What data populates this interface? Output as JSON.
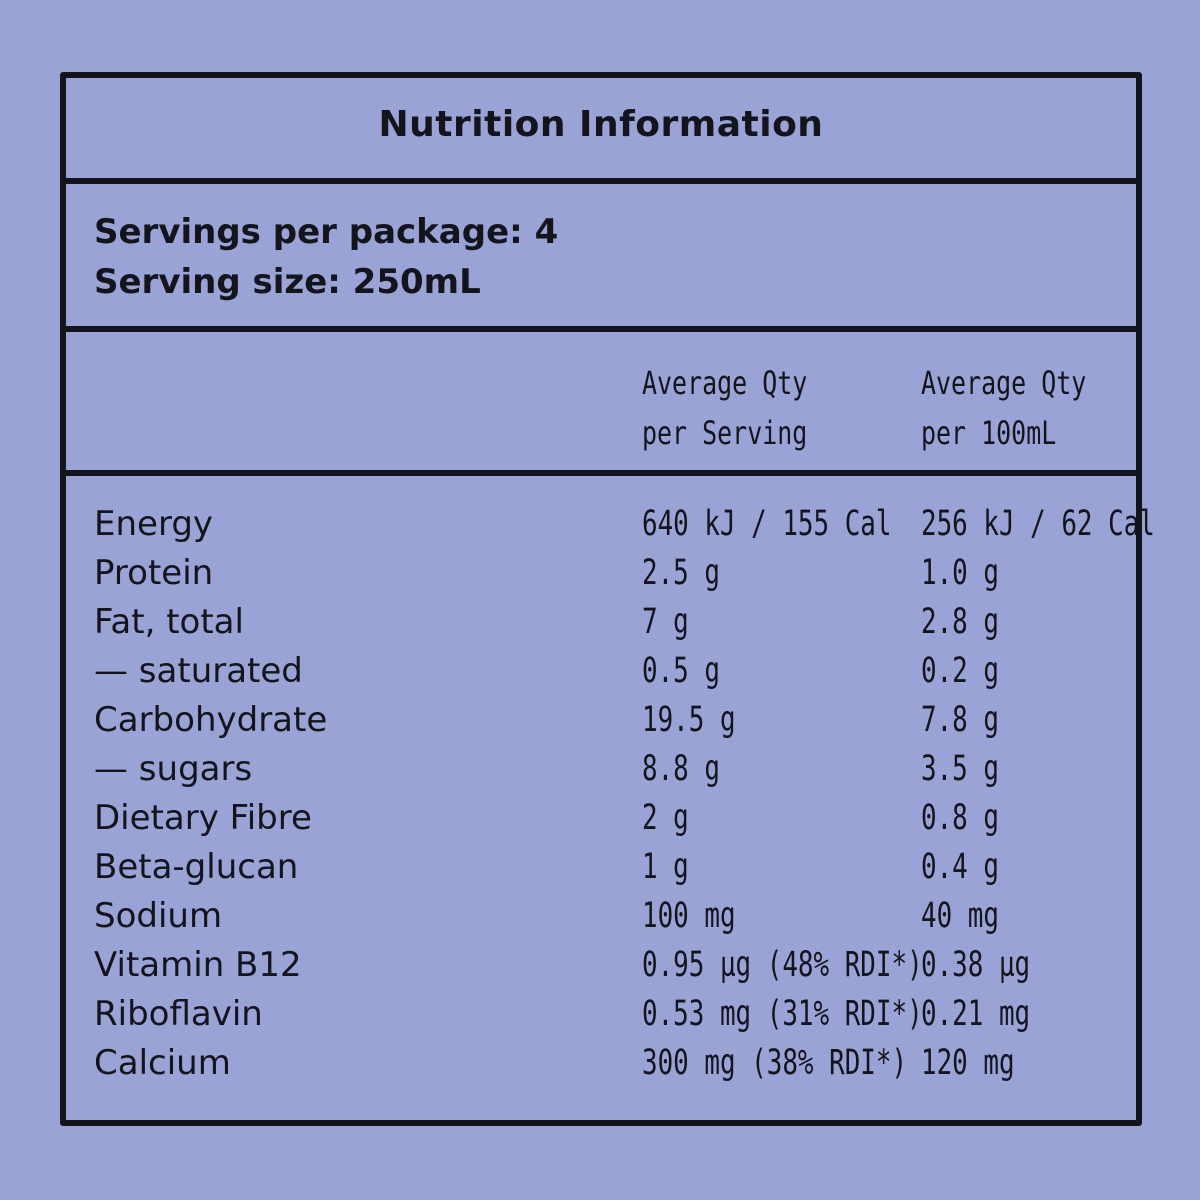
{
  "panel": {
    "title": "Nutrition Information"
  },
  "serving": {
    "servings_per_package": "Servings per package: 4",
    "serving_size": "Serving size: 250mL"
  },
  "columns": {
    "per_serving_line1": "Average Qty",
    "per_serving_line2": "per Serving",
    "per_100ml_line1": "Average Qty",
    "per_100ml_line2": "per 100mL"
  },
  "rows": [
    {
      "nutrient": "Energy",
      "per_serving": "640 kJ / 155 Cal",
      "per_100ml": "256 kJ / 62 Cal"
    },
    {
      "nutrient": "Protein",
      "per_serving": "2.5 g",
      "per_100ml": "1.0 g"
    },
    {
      "nutrient": "Fat, total",
      "per_serving": "7 g",
      "per_100ml": "2.8 g"
    },
    {
      "nutrient": "— saturated",
      "per_serving": "0.5 g",
      "per_100ml": "0.2 g"
    },
    {
      "nutrient": "Carbohydrate",
      "per_serving": "19.5 g",
      "per_100ml": "7.8 g"
    },
    {
      "nutrient": "— sugars",
      "per_serving": "8.8 g",
      "per_100ml": "3.5 g"
    },
    {
      "nutrient": "Dietary Fibre",
      "per_serving": "2 g",
      "per_100ml": "0.8 g"
    },
    {
      "nutrient": "Beta-glucan",
      "per_serving": "1 g",
      "per_100ml": "0.4 g"
    },
    {
      "nutrient": "Sodium",
      "per_serving": "100 mg",
      "per_100ml": "40 mg"
    },
    {
      "nutrient": "Vitamin B12",
      "per_serving": "0.95 µg  (48% RDI*)",
      "per_100ml": "0.38 µg"
    },
    {
      "nutrient": "Riboflavin",
      "per_serving": "0.53 mg  (31% RDI*)",
      "per_100ml": "0.21 mg"
    },
    {
      "nutrient": "Calcium",
      "per_serving": "300 mg  (38% RDI*)",
      "per_100ml": "120 mg"
    }
  ],
  "colors": {
    "background": "#9aa3d6",
    "ink": "#14141c"
  }
}
